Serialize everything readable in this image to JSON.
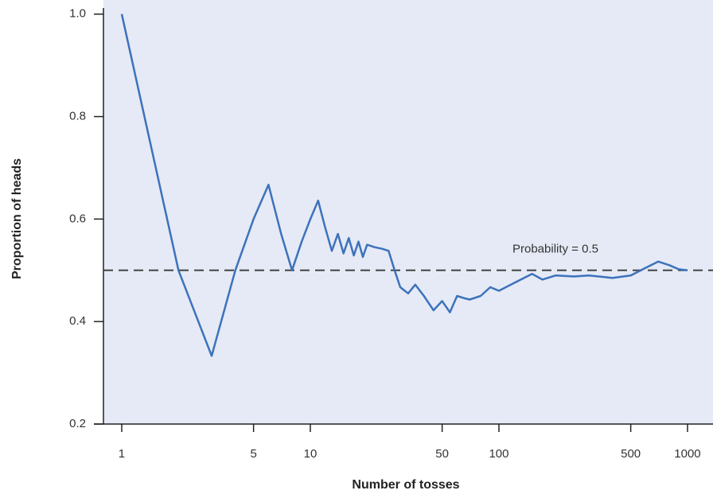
{
  "chart_data": {
    "type": "line",
    "x_label": "Number of tosses",
    "y_label": "Proportion of heads",
    "annotation": "Probability = 0.5",
    "reference_line": 0.5,
    "log_x": true,
    "xlim": [
      0.8,
      1365
    ],
    "xticks": [
      1,
      5,
      10,
      50,
      100,
      500,
      1000
    ],
    "ylim": [
      0.2,
      1.012
    ],
    "yticks": [
      0.2,
      0.4,
      0.6,
      0.8,
      {
        "value": 1,
        "label": "1.0"
      }
    ],
    "background": "#e5eaf6",
    "series": [
      {
        "color": "#3d72ba",
        "x": [
          1,
          2,
          3,
          4,
          5,
          6,
          7,
          8,
          9,
          10,
          11,
          12,
          13,
          14,
          15,
          16,
          17,
          18,
          19,
          20,
          22,
          24,
          26,
          28,
          30,
          33,
          36,
          40,
          45,
          50,
          55,
          60,
          65,
          70,
          80,
          90,
          100,
          120,
          150,
          170,
          200,
          250,
          300,
          400,
          500,
          600,
          700,
          800,
          900,
          1000
        ],
        "values": [
          1.0,
          0.5,
          0.333,
          0.5,
          0.6,
          0.667,
          0.571,
          0.5,
          0.556,
          0.6,
          0.636,
          0.583,
          0.538,
          0.571,
          0.533,
          0.563,
          0.529,
          0.556,
          0.526,
          0.55,
          0.545,
          0.542,
          0.538,
          0.5,
          0.467,
          0.455,
          0.472,
          0.45,
          0.422,
          0.44,
          0.418,
          0.45,
          0.446,
          0.443,
          0.45,
          0.467,
          0.46,
          0.475,
          0.493,
          0.482,
          0.49,
          0.488,
          0.49,
          0.485,
          0.49,
          0.505,
          0.517,
          0.51,
          0.502,
          0.5
        ]
      }
    ]
  }
}
